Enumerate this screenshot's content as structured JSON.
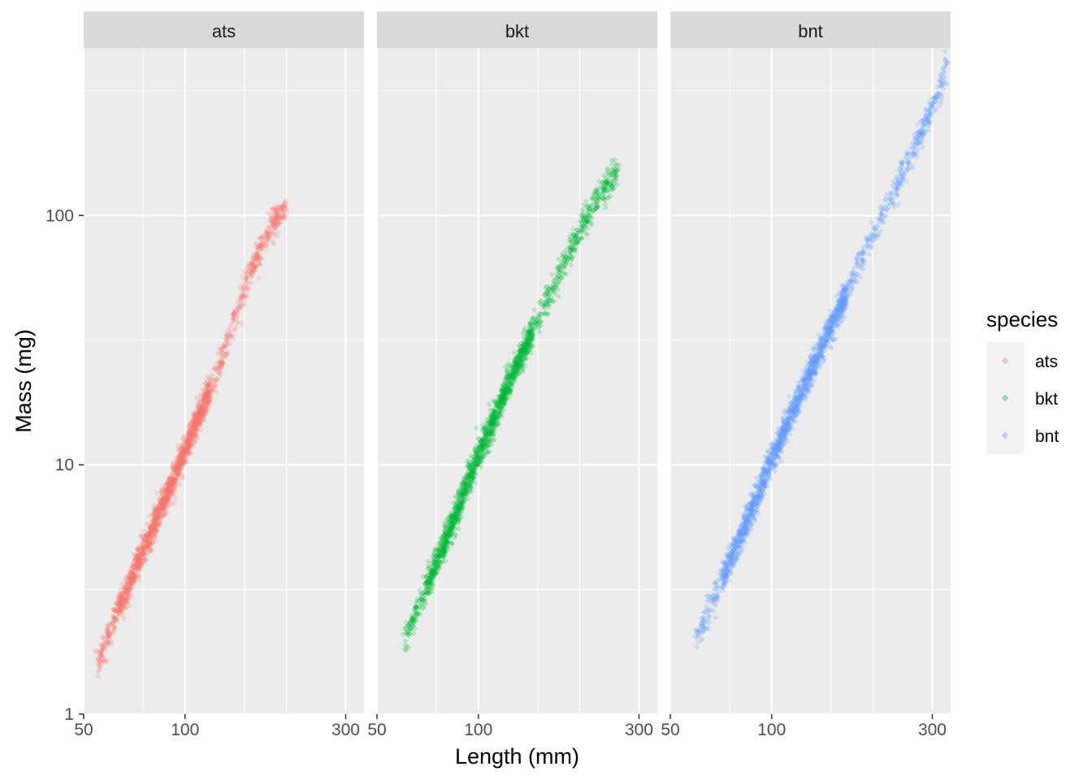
{
  "chart_data": {
    "type": "scatter",
    "facet_by": "species",
    "facets": [
      "ats",
      "bkt",
      "bnt"
    ],
    "xlabel": "Length (mm)",
    "ylabel": "Mass (mg)",
    "x_scale": "log10",
    "y_scale": "log10",
    "xlim": [
      50,
      340
    ],
    "ylim": [
      1,
      470
    ],
    "x_ticks": [
      50,
      100,
      300
    ],
    "x_tick_labels": [
      "50",
      "100",
      "300"
    ],
    "y_ticks": [
      1,
      10,
      100
    ],
    "y_tick_labels": [
      "1",
      "10",
      "100"
    ],
    "grid": true,
    "legend": {
      "title": "species",
      "position": "right",
      "entries": [
        "ats",
        "bkt",
        "bnt"
      ]
    },
    "colors": {
      "ats": "#F8766D",
      "bkt": "#00BA38",
      "bnt": "#619CFF"
    },
    "panel_background": "#EBEBEB",
    "strip_background": "#D9D9D9",
    "series": [
      {
        "name": "ats",
        "trend": [
          [
            55,
            1.6
          ],
          [
            60,
            2.2
          ],
          [
            70,
            3.6
          ],
          [
            80,
            5.5
          ],
          [
            90,
            8
          ],
          [
            100,
            11.5
          ],
          [
            110,
            15.5
          ],
          [
            120,
            20.5
          ],
          [
            130,
            28
          ],
          [
            140,
            38
          ],
          [
            150,
            50
          ],
          [
            160,
            63
          ],
          [
            180,
            92
          ],
          [
            200,
            108
          ]
        ]
      },
      {
        "name": "bkt",
        "trend": [
          [
            60,
            1.9
          ],
          [
            70,
            3.2
          ],
          [
            80,
            5
          ],
          [
            90,
            7.5
          ],
          [
            100,
            11
          ],
          [
            110,
            14.5
          ],
          [
            120,
            19.5
          ],
          [
            130,
            25
          ],
          [
            150,
            38
          ],
          [
            170,
            55
          ],
          [
            190,
            75
          ],
          [
            220,
            110
          ],
          [
            260,
            155
          ]
        ]
      },
      {
        "name": "bnt",
        "trend": [
          [
            60,
            2
          ],
          [
            70,
            3.3
          ],
          [
            80,
            5
          ],
          [
            90,
            7.3
          ],
          [
            100,
            10.5
          ],
          [
            120,
            18.5
          ],
          [
            140,
            29
          ],
          [
            160,
            43
          ],
          [
            180,
            62
          ],
          [
            200,
            85
          ],
          [
            240,
            140
          ],
          [
            280,
            220
          ],
          [
            320,
            330
          ],
          [
            330,
            400
          ]
        ]
      }
    ]
  }
}
